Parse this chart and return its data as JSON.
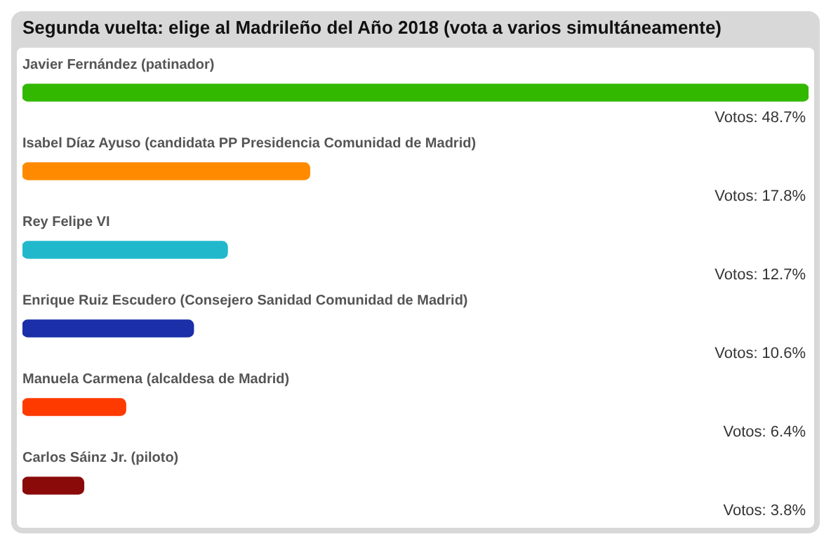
{
  "chart_data": {
    "type": "bar",
    "orientation": "horizontal",
    "title": "Segunda vuelta: elige al Madrileño del Año 2018 (vota a varios simultáneamente)",
    "categories": [
      "Javier Fernández (patinador)",
      "Isabel Díaz Ayuso (candidata PP Presidencia Comunidad de Madrid)",
      "Rey Felipe VI",
      "Enrique Ruiz Escudero (Consejero Sanidad Comunidad de Madrid)",
      "Manuela Carmena (alcaldesa de Madrid)",
      "Carlos Sáinz Jr. (piloto)"
    ],
    "values": [
      48.7,
      17.8,
      12.7,
      10.6,
      6.4,
      3.8
    ],
    "colors": [
      "#33b800",
      "#ff8a00",
      "#22b8cc",
      "#1a2fa8",
      "#ff3a00",
      "#8a0a0a"
    ],
    "value_labels": [
      "Votos: 48.7%",
      "Votos: 17.8%",
      "Votos: 12.7%",
      "Votos: 10.6%",
      "Votos: 6.4%",
      "Votos: 3.8%"
    ]
  }
}
